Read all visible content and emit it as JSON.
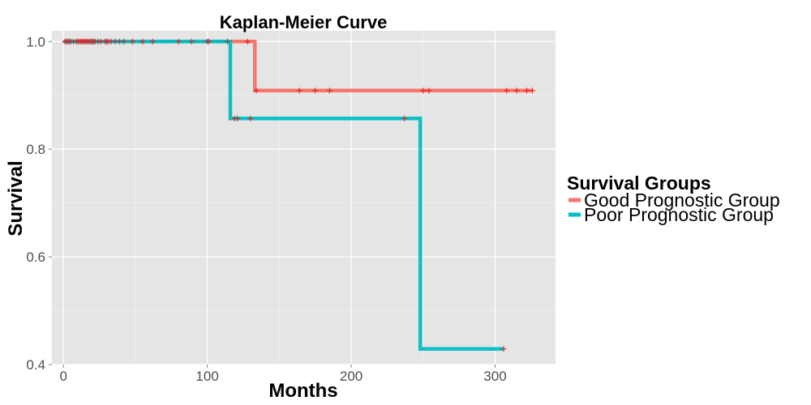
{
  "chart_data": {
    "type": "line",
    "title": "Kaplan-Meier Curve",
    "xlabel": "Months",
    "ylabel": "Survival",
    "xlim": [
      -8,
      342
    ],
    "ylim": [
      0.4,
      1.02
    ],
    "x_ticks": [
      0,
      100,
      200,
      300
    ],
    "y_ticks": [
      0.4,
      0.6,
      0.8,
      1.0
    ],
    "y_tick_labels": [
      "0.4",
      "0.6",
      "0.8",
      "1.0"
    ],
    "grid": true,
    "legend": {
      "title": "Survival Groups",
      "position": "right"
    },
    "series": [
      {
        "name": "Good Prognostic Group",
        "color": "#F8766D",
        "steps": [
          [
            0,
            1.0
          ],
          [
            133,
            1.0
          ],
          [
            133,
            0.909
          ],
          [
            326,
            0.909
          ]
        ],
        "censored": [
          [
            1,
            1.0
          ],
          [
            2,
            1.0
          ],
          [
            3,
            1.0
          ],
          [
            4,
            1.0
          ],
          [
            5,
            1.0
          ],
          [
            7,
            1.0
          ],
          [
            9,
            1.0
          ],
          [
            11,
            1.0
          ],
          [
            12,
            1.0
          ],
          [
            13,
            1.0
          ],
          [
            14,
            1.0
          ],
          [
            15,
            1.0
          ],
          [
            16,
            1.0
          ],
          [
            17,
            1.0
          ],
          [
            18,
            1.0
          ],
          [
            19,
            1.0
          ],
          [
            20,
            1.0
          ],
          [
            21,
            1.0
          ],
          [
            22,
            1.0
          ],
          [
            24,
            1.0
          ],
          [
            26,
            1.0
          ],
          [
            29,
            1.0
          ],
          [
            31,
            1.0
          ],
          [
            33,
            1.0
          ],
          [
            36,
            1.0
          ],
          [
            39,
            1.0
          ],
          [
            42,
            1.0
          ],
          [
            48,
            1.0
          ],
          [
            55,
            1.0
          ],
          [
            62,
            1.0
          ],
          [
            80,
            1.0
          ],
          [
            89,
            1.0
          ],
          [
            100,
            1.0
          ],
          [
            101,
            1.0
          ],
          [
            114,
            1.0
          ],
          [
            128,
            1.0
          ],
          [
            134,
            0.909
          ],
          [
            164,
            0.909
          ],
          [
            175,
            0.909
          ],
          [
            185,
            0.909
          ],
          [
            250,
            0.909
          ],
          [
            254,
            0.909
          ],
          [
            308,
            0.909
          ],
          [
            315,
            0.909
          ],
          [
            322,
            0.909
          ],
          [
            326,
            0.909
          ]
        ]
      },
      {
        "name": "Poor Prognostic Group",
        "color": "#00BFC4",
        "steps": [
          [
            0,
            1.0
          ],
          [
            116,
            1.0
          ],
          [
            116,
            0.857
          ],
          [
            248,
            0.857
          ],
          [
            248,
            0.429
          ],
          [
            306,
            0.429
          ]
        ],
        "censored": [
          [
            5,
            1.0
          ],
          [
            10,
            1.0
          ],
          [
            20,
            1.0
          ],
          [
            30,
            1.0
          ],
          [
            119,
            0.857
          ],
          [
            121,
            0.857
          ],
          [
            130,
            0.857
          ],
          [
            237,
            0.857
          ],
          [
            306,
            0.429
          ]
        ]
      }
    ],
    "censor_mark_color": "#E31A1C"
  }
}
